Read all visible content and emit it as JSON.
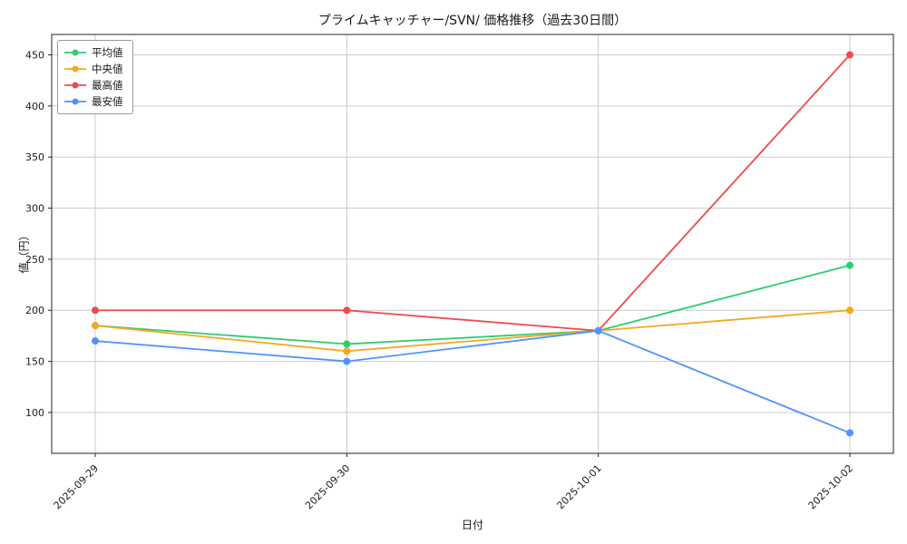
{
  "figure": {
    "background": "#ffffff"
  },
  "chart_data": {
    "type": "line",
    "title": "プライムキャッチャー/SVN/ 価格推移（過去30日間）",
    "xlabel": "日付",
    "ylabel": "値（円）",
    "categories": [
      "2025-09-29",
      "2025-09-30",
      "2025-10-01",
      "2025-10-02"
    ],
    "series": [
      {
        "name": "平均値",
        "color": "#2ecc71",
        "values": [
          185,
          167,
          180,
          244
        ]
      },
      {
        "name": "中央値",
        "color": "#f5a623",
        "values": [
          185,
          160,
          180,
          200
        ]
      },
      {
        "name": "最高値",
        "color": "#ee4b4b",
        "values": [
          200,
          200,
          180,
          450
        ]
      },
      {
        "name": "最安値",
        "color": "#4d94ff",
        "values": [
          170,
          150,
          180,
          80
        ]
      }
    ],
    "ylim": [
      60,
      470
    ],
    "yticks": [
      100,
      150,
      200,
      250,
      300,
      350,
      400,
      450
    ],
    "grid": true,
    "legend_position": "upper-left",
    "marker": "circle",
    "colors": {
      "grid": "#cccccc",
      "spine": "#262626",
      "text": "#1a1a1a"
    }
  }
}
